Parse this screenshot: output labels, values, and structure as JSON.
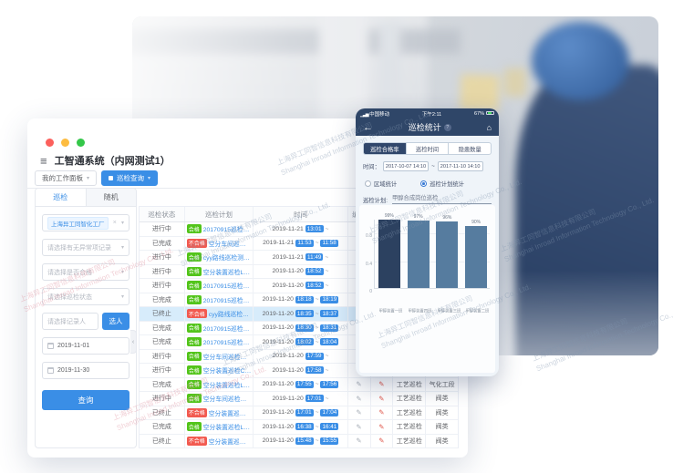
{
  "window": {
    "title": "工智通系统（内网测试1）",
    "tabs": [
      {
        "label": "我的工作面板"
      },
      {
        "label": "巡检查询"
      }
    ]
  },
  "sidebar": {
    "tabs": [
      "巡检",
      "随机"
    ],
    "factory_tag": "上海异工同智化工厂",
    "filters": [
      "请选择有无异常项记录",
      "请选择是否合格",
      "请选择巡检状态"
    ],
    "recorder_placeholder": "请选择记录人",
    "pick_person_label": "选人",
    "date_start": "2019-11-01",
    "date_end": "2019-11-30",
    "query_label": "查询"
  },
  "table": {
    "headers": [
      "巡检状态",
      "巡检计划",
      "时间",
      "编写",
      "",
      "",
      ""
    ],
    "rows": [
      {
        "status": "进行中",
        "result": "合格",
        "plan": "20170915巡检测试",
        "date": "2019-11-21",
        "start": "13:01",
        "end": "",
        "type": "",
        "area": "",
        "selected": false
      },
      {
        "status": "已完成",
        "result": "不合格",
        "plan": "空分车间巡检路线",
        "date": "2019-11-21",
        "start": "11:53",
        "end": "11:58",
        "type": "",
        "area": "",
        "selected": false
      },
      {
        "status": "进行中",
        "result": "合格",
        "plan": "cyy路线巡检测试计划",
        "date": "2019-11-21",
        "start": "11:49",
        "end": "",
        "type": "",
        "area": "",
        "selected": false
      },
      {
        "status": "进行中",
        "result": "合格",
        "plan": "空分装置巡检LFF",
        "date": "2019-11-20",
        "start": "18:52",
        "end": "",
        "type": "",
        "area": "",
        "selected": false
      },
      {
        "status": "进行中",
        "result": "合格",
        "plan": "20170915巡检测试",
        "date": "2019-11-20",
        "start": "18:52",
        "end": "",
        "type": "",
        "area": "",
        "selected": false
      },
      {
        "status": "已完成",
        "result": "合格",
        "plan": "20170915巡检测试",
        "date": "2019-11-20",
        "start": "18:18",
        "end": "18:19",
        "type": "",
        "area": "",
        "selected": false
      },
      {
        "status": "已终止",
        "result": "不合格",
        "plan": "cyy路线巡检测试计划",
        "date": "2019-11-20",
        "start": "18:35",
        "end": "18:37",
        "type": "",
        "area": "",
        "selected": true
      },
      {
        "status": "已完成",
        "result": "合格",
        "plan": "20170915巡检测试",
        "date": "2019-11-20",
        "start": "18:30",
        "end": "18:31",
        "type": "",
        "area": "",
        "selected": false
      },
      {
        "status": "已完成",
        "result": "合格",
        "plan": "20170915巡检测试",
        "date": "2019-11-20",
        "start": "18:02",
        "end": "18:04",
        "type": "",
        "area": "",
        "selected": false
      },
      {
        "status": "进行中",
        "result": "合格",
        "plan": "空分车间巡检路线",
        "date": "2019-11-20",
        "start": "17:59",
        "end": "",
        "type": "",
        "area": "",
        "selected": false
      },
      {
        "status": "进行中",
        "result": "合格",
        "plan": "空分装置巡检CSY",
        "date": "2019-11-20",
        "start": "17:58",
        "end": "",
        "type": "",
        "area": "",
        "selected": false
      },
      {
        "status": "已完成",
        "result": "合格",
        "plan": "空分装置巡检LPF",
        "date": "2019-11-20",
        "start": "17:55",
        "end": "17:56",
        "type": "工艺巡检",
        "area": "气化工段",
        "selected": false
      },
      {
        "status": "进行中",
        "result": "合格",
        "plan": "空分车间巡检路线",
        "date": "2019-11-20",
        "start": "17:01",
        "end": "",
        "type": "工艺巡检",
        "area": "阀类",
        "selected": false
      },
      {
        "status": "已终止",
        "result": "不合格",
        "plan": "空分装置巡检LPF",
        "date": "2019-11-20",
        "start": "17:01",
        "end": "17:04",
        "type": "工艺巡检",
        "area": "阀类",
        "selected": false
      },
      {
        "status": "已完成",
        "result": "合格",
        "plan": "空分装置巡检LPF",
        "date": "2019-11-20",
        "start": "16:38",
        "end": "16:41",
        "type": "工艺巡检",
        "area": "阀类",
        "selected": false
      },
      {
        "status": "已终止",
        "result": "不合格",
        "plan": "空分装置巡检LPF",
        "date": "2019-11-20",
        "start": "15:48",
        "end": "15:55",
        "type": "工艺巡检",
        "area": "阀类",
        "selected": false
      }
    ]
  },
  "phone": {
    "status_bar": {
      "carrier": "中国移动",
      "time": "下午2:11",
      "battery": "67%"
    },
    "nav": {
      "title": "巡检统计",
      "help": "?"
    },
    "segments": [
      {
        "label": "巡检合格率",
        "active": true
      },
      {
        "label": "巡检时间",
        "active": false
      },
      {
        "label": "隐患数量",
        "active": false
      }
    ],
    "time_label": "时间：",
    "time_from": "2017-10-07 14:10",
    "time_separator": "~",
    "time_to": "2017-11-10 14:10",
    "radios": [
      {
        "label": "区域统计",
        "selected": false
      },
      {
        "label": "巡检计划统计",
        "selected": true
      }
    ],
    "plan_label": "巡检计划:",
    "plan_value": "甲醇合成岗位巡检"
  },
  "chart_data": {
    "type": "bar",
    "categories": [
      "甲醇装置一班",
      "甲醇装置四班",
      "甲醇装置三班",
      "甲醇装置二班"
    ],
    "values": [
      0.99,
      0.97,
      0.96,
      0.9
    ],
    "value_labels": [
      "99%",
      "97%",
      "96%",
      "90%"
    ],
    "title": "",
    "xlabel": "",
    "ylabel": "",
    "ylim": [
      0,
      1
    ],
    "yticks": [
      0,
      0.4,
      0.8
    ],
    "grid": true,
    "legend": false,
    "bar_colors": [
      "#2c4160",
      "#567c9f",
      "#567c9f",
      "#567c9f"
    ]
  },
  "colors": {
    "accent_blue": "#3a8ee6",
    "badge_green": "#52c41a",
    "badge_red": "#f25a50",
    "phone_navy": "#2f4668",
    "selected_row": "#d7ecfb"
  },
  "watermark": {
    "cn": "上海异工同智信息科技有限公司",
    "en": "Shanghai Inroad Information Technology Co., Ltd."
  }
}
